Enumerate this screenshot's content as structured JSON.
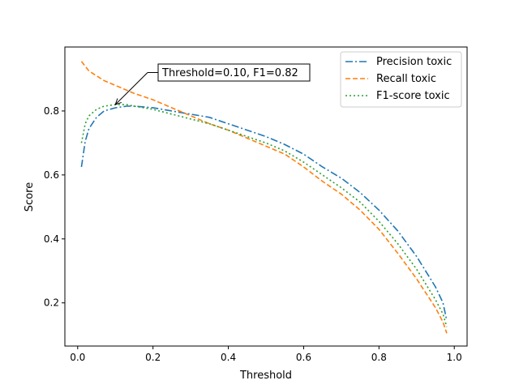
{
  "chart_data": {
    "type": "line",
    "title": "",
    "xlabel": "Threshold",
    "ylabel": "Score",
    "xlim": [
      -0.034,
      1.034
    ],
    "ylim": [
      0.065,
      1.0
    ],
    "xticks": [
      0.0,
      0.2,
      0.4,
      0.6,
      0.8,
      1.0
    ],
    "xtick_labels": [
      "0.0",
      "0.2",
      "0.4",
      "0.6",
      "0.8",
      "1.0"
    ],
    "yticks": [
      0.2,
      0.4,
      0.6,
      0.8
    ],
    "ytick_labels": [
      "0.2",
      "0.4",
      "0.6",
      "0.8"
    ],
    "grid": false,
    "legend_position": "top-right",
    "x": [
      0.01,
      0.02,
      0.03,
      0.05,
      0.07,
      0.1,
      0.13,
      0.15,
      0.2,
      0.25,
      0.3,
      0.35,
      0.4,
      0.45,
      0.5,
      0.55,
      0.6,
      0.65,
      0.7,
      0.75,
      0.8,
      0.85,
      0.9,
      0.95,
      0.97,
      0.98
    ],
    "series": [
      {
        "name": "Precision toxic",
        "color": "#1f77b4",
        "dash": "dashdot",
        "values": [
          0.625,
          0.705,
          0.745,
          0.78,
          0.8,
          0.81,
          0.815,
          0.815,
          0.81,
          0.8,
          0.79,
          0.78,
          0.76,
          0.74,
          0.72,
          0.695,
          0.665,
          0.625,
          0.59,
          0.545,
          0.49,
          0.425,
          0.345,
          0.25,
          0.2,
          0.145
        ]
      },
      {
        "name": "Recall toxic",
        "color": "#ff7f0e",
        "dash": "dashed",
        "values": [
          0.955,
          0.94,
          0.925,
          0.91,
          0.895,
          0.88,
          0.865,
          0.855,
          0.835,
          0.81,
          0.785,
          0.76,
          0.74,
          0.715,
          0.69,
          0.665,
          0.625,
          0.58,
          0.54,
          0.49,
          0.43,
          0.355,
          0.275,
          0.185,
          0.14,
          0.105
        ]
      },
      {
        "name": "F1-score toxic",
        "color": "#2ca02c",
        "dash": "dotted",
        "values": [
          0.7,
          0.76,
          0.785,
          0.805,
          0.815,
          0.82,
          0.82,
          0.815,
          0.805,
          0.79,
          0.775,
          0.76,
          0.74,
          0.72,
          0.7,
          0.675,
          0.64,
          0.6,
          0.56,
          0.515,
          0.455,
          0.385,
          0.305,
          0.21,
          0.165,
          0.125
        ]
      }
    ],
    "annotation": {
      "text": "Threshold=0.10, F1=0.82",
      "x": 0.1,
      "y": 0.82
    }
  }
}
